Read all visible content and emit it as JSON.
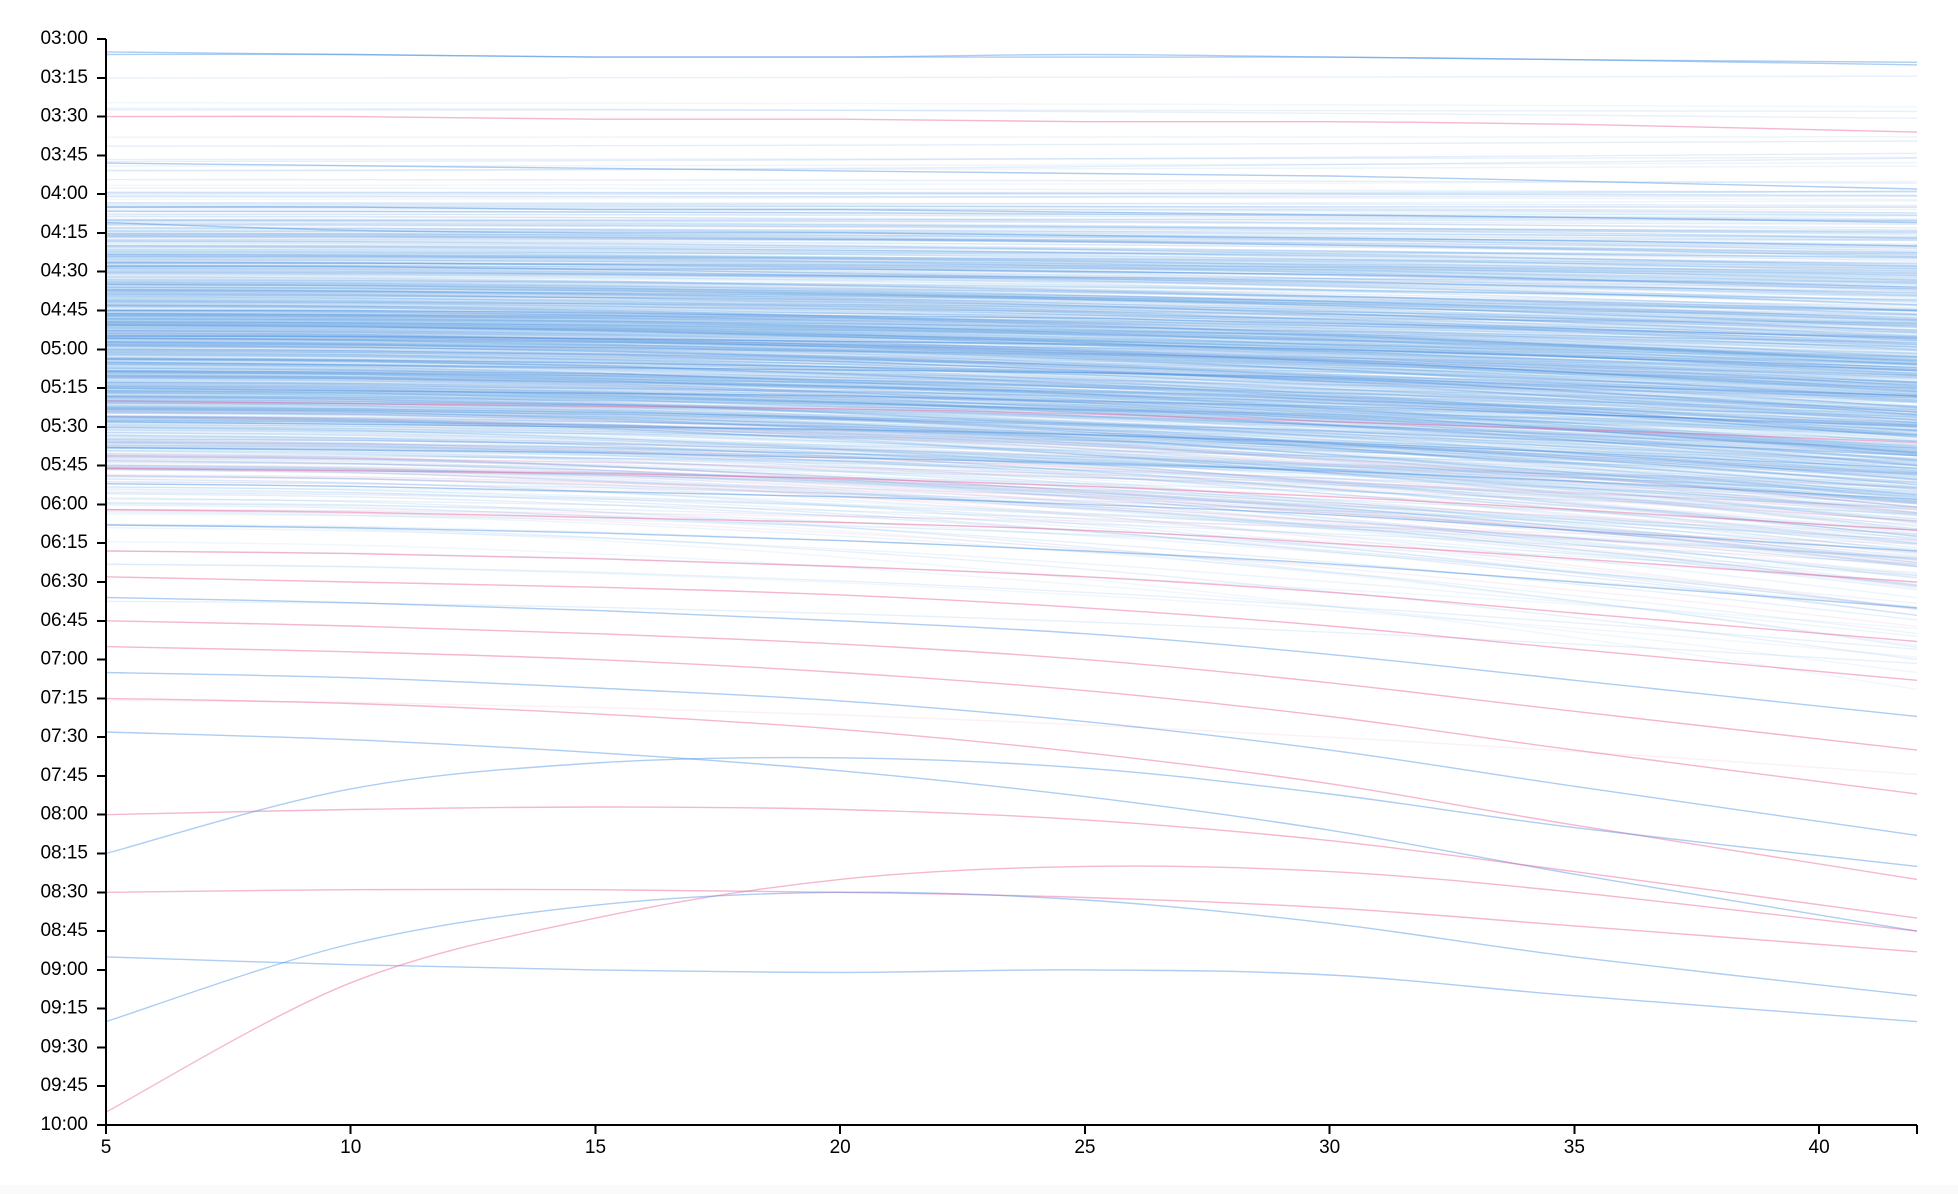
{
  "chart_data": {
    "type": "line",
    "title": "",
    "xlabel": "",
    "ylabel": "",
    "xlim": [
      5,
      42
    ],
    "ylim": [
      "03:00",
      "10:00"
    ],
    "x_ticks": [
      "5",
      "10",
      "15",
      "20",
      "25",
      "30",
      "35",
      "40"
    ],
    "y_ticks": [
      "03:00",
      "03:15",
      "03:30",
      "03:45",
      "04:00",
      "04:15",
      "04:30",
      "04:45",
      "05:00",
      "05:15",
      "05:30",
      "05:45",
      "06:00",
      "06:15",
      "06:30",
      "06:45",
      "07:00",
      "07:15",
      "07:30",
      "07:45",
      "08:00",
      "08:15",
      "08:30",
      "08:45",
      "09:00",
      "09:15",
      "09:30",
      "09:45",
      "10:00"
    ],
    "grid": false,
    "legend": "none",
    "colors": {
      "blue_series": "#4a90e2",
      "pink_series": "#e85d9a",
      "axis": "#000000"
    },
    "x": [
      5,
      10,
      15,
      20,
      25,
      30,
      35,
      42
    ],
    "series": [
      {
        "color": "blue",
        "values": [
          "03:05",
          "03:06",
          "03:07",
          "03:07",
          "03:06",
          "03:07",
          "03:08",
          "03:10"
        ]
      },
      {
        "color": "blue",
        "values": [
          "03:06",
          "03:06",
          "03:07",
          "03:07",
          "03:07",
          "03:07",
          "03:08",
          "03:09"
        ]
      },
      {
        "color": "pink",
        "values": [
          "03:30",
          "03:30",
          "03:31",
          "03:31",
          "03:32",
          "03:32",
          "03:33",
          "03:36"
        ]
      },
      {
        "color": "blue",
        "values": [
          "03:48",
          "03:49",
          "03:50",
          "03:51",
          "03:52",
          "03:53",
          "03:55",
          "03:58"
        ]
      },
      {
        "color": "blue",
        "values": [
          "04:05",
          "04:05",
          "04:06",
          "04:06",
          "04:07",
          "04:08",
          "04:09",
          "04:11"
        ]
      },
      {
        "color": "blue",
        "values": [
          "04:11",
          "04:14",
          "04:15",
          "04:15",
          "04:16",
          "04:17",
          "04:18",
          "04:20"
        ]
      },
      {
        "color": "blue",
        "values": [
          "04:28",
          "04:28",
          "04:29",
          "04:29",
          "04:30",
          "04:31",
          "04:33",
          "04:36"
        ]
      },
      {
        "color": "blue",
        "values": [
          "04:45",
          "04:45",
          "04:46",
          "04:47",
          "04:48",
          "04:50",
          "04:52",
          "04:56"
        ]
      },
      {
        "color": "blue",
        "values": [
          "04:55",
          "04:55",
          "04:56",
          "04:57",
          "04:58",
          "05:00",
          "05:03",
          "05:07"
        ]
      },
      {
        "color": "blue",
        "values": [
          "05:05",
          "05:06",
          "05:07",
          "05:08",
          "05:09",
          "05:11",
          "05:14",
          "05:18"
        ]
      },
      {
        "color": "blue",
        "values": [
          "05:15",
          "05:16",
          "05:17",
          "05:18",
          "05:20",
          "05:22",
          "05:25",
          "05:30"
        ]
      },
      {
        "color": "pink",
        "values": [
          "05:20",
          "05:21",
          "05:22",
          "05:23",
          "05:25",
          "05:28",
          "05:31",
          "05:36"
        ]
      },
      {
        "color": "blue",
        "values": [
          "05:28",
          "05:29",
          "05:30",
          "05:31",
          "05:33",
          "05:36",
          "05:40",
          "05:46"
        ]
      },
      {
        "color": "blue",
        "values": [
          "05:38",
          "05:39",
          "05:40",
          "05:42",
          "05:44",
          "05:47",
          "05:51",
          "05:58"
        ]
      },
      {
        "color": "pink",
        "values": [
          "05:46",
          "05:47",
          "05:48",
          "05:50",
          "05:53",
          "05:57",
          "06:02",
          "06:10"
        ]
      },
      {
        "color": "blue",
        "values": [
          "05:52",
          "05:53",
          "05:55",
          "05:57",
          "06:00",
          "06:04",
          "06:10",
          "06:18"
        ]
      },
      {
        "color": "pink",
        "values": [
          "06:02",
          "06:03",
          "06:05",
          "06:07",
          "06:10",
          "06:15",
          "06:21",
          "06:30"
        ]
      },
      {
        "color": "blue",
        "values": [
          "06:08",
          "06:09",
          "06:11",
          "06:14",
          "06:18",
          "06:23",
          "06:30",
          "06:40"
        ]
      },
      {
        "color": "pink",
        "values": [
          "06:18",
          "06:19",
          "06:21",
          "06:24",
          "06:28",
          "06:34",
          "06:42",
          "06:53"
        ]
      },
      {
        "color": "pink",
        "values": [
          "06:28",
          "06:30",
          "06:32",
          "06:35",
          "06:40",
          "06:47",
          "06:56",
          "07:08"
        ]
      },
      {
        "color": "blue",
        "values": [
          "06:36",
          "06:38",
          "06:41",
          "06:45",
          "06:50",
          "06:58",
          "07:08",
          "07:22"
        ]
      },
      {
        "color": "pink",
        "values": [
          "06:45",
          "06:47",
          "06:50",
          "06:54",
          "07:00",
          "07:09",
          "07:20",
          "07:35"
        ]
      },
      {
        "color": "pink",
        "values": [
          "06:55",
          "06:57",
          "07:00",
          "07:05",
          "07:12",
          "07:22",
          "07:35",
          "07:52"
        ]
      },
      {
        "color": "blue",
        "values": [
          "07:05",
          "07:07",
          "07:11",
          "07:16",
          "07:24",
          "07:35",
          "07:49",
          "08:08"
        ]
      },
      {
        "color": "pink",
        "values": [
          "07:15",
          "07:17",
          "07:21",
          "07:27",
          "07:36",
          "07:48",
          "08:04",
          "08:25"
        ]
      },
      {
        "color": "blue",
        "values": [
          "07:28",
          "07:31",
          "07:36",
          "07:43",
          "07:53",
          "08:06",
          "08:23",
          "08:45"
        ]
      },
      {
        "color": "pink",
        "values": [
          "08:00",
          "07:58",
          "07:57",
          "07:58",
          "08:02",
          "08:10",
          "08:22",
          "08:40"
        ]
      },
      {
        "color": "pink",
        "values": [
          "08:30",
          "08:29",
          "08:29",
          "08:30",
          "08:32",
          "08:36",
          "08:43",
          "08:53"
        ]
      },
      {
        "color": "blue",
        "values": [
          "08:55",
          "08:58",
          "09:00",
          "09:01",
          "09:00",
          "09:02",
          "09:10",
          "09:20"
        ]
      },
      {
        "color": "pink",
        "values": [
          "09:55",
          "09:05",
          "08:40",
          "08:25",
          "08:20",
          "08:22",
          "08:30",
          "08:45"
        ]
      },
      {
        "color": "blue",
        "values": [
          "09:20",
          "08:50",
          "08:35",
          "08:30",
          "08:33",
          "08:42",
          "08:55",
          "09:10"
        ]
      },
      {
        "color": "blue",
        "values": [
          "08:15",
          "07:50",
          "07:40",
          "07:38",
          "07:42",
          "07:52",
          "08:05",
          "08:20"
        ]
      }
    ]
  }
}
